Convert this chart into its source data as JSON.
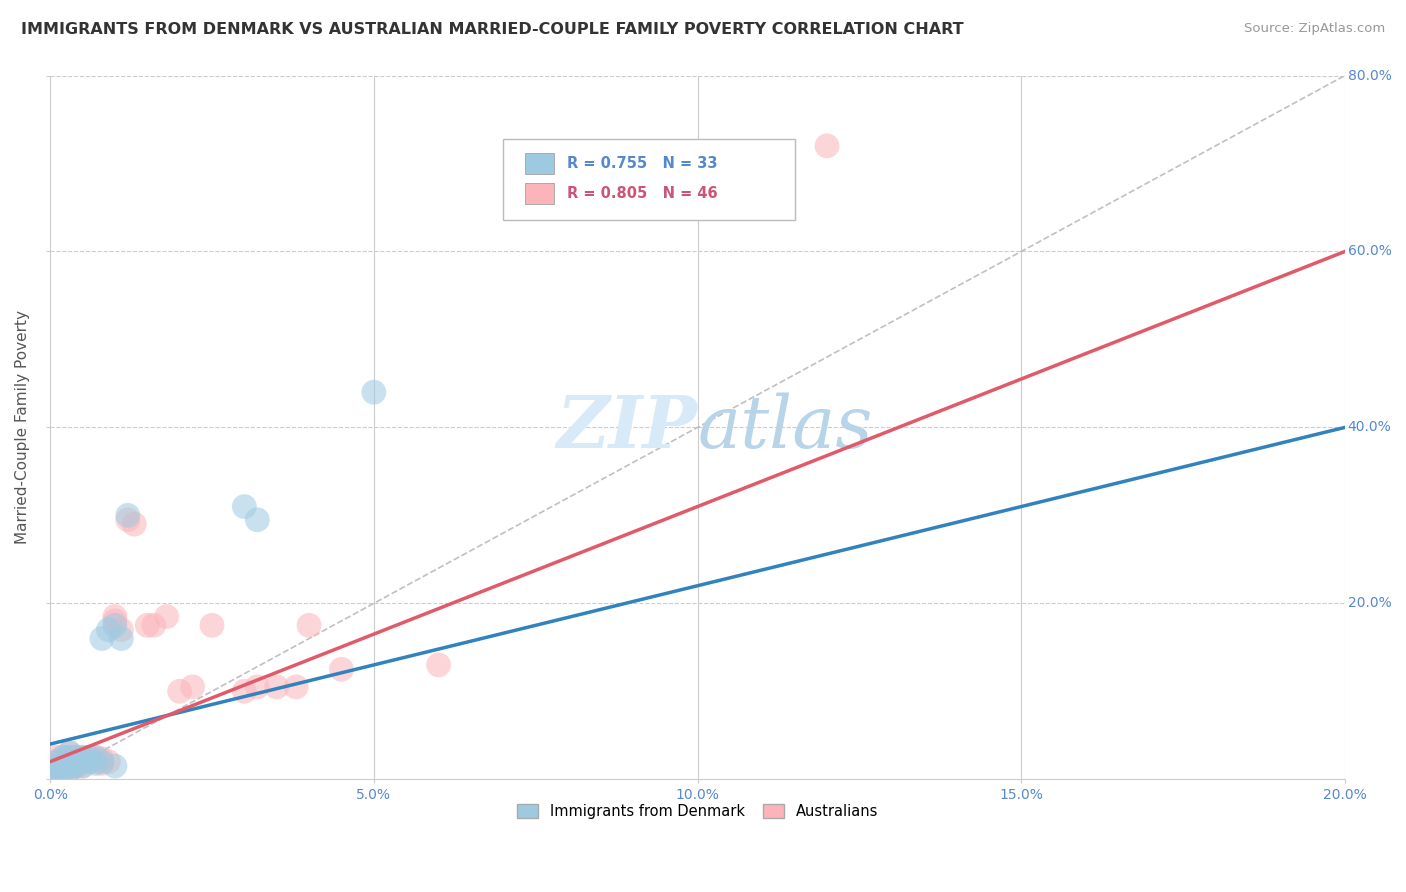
{
  "title": "IMMIGRANTS FROM DENMARK VS AUSTRALIAN MARRIED-COUPLE FAMILY POVERTY CORRELATION CHART",
  "source": "Source: ZipAtlas.com",
  "ylabel": "Married-Couple Family Poverty",
  "xlim": [
    0.0,
    0.2
  ],
  "ylim": [
    0.0,
    0.8
  ],
  "legend_r1": "R = 0.755",
  "legend_n1": "N = 33",
  "legend_r2": "R = 0.805",
  "legend_n2": "N = 46",
  "color_blue": "#9ecae1",
  "color_pink": "#fbb4b9",
  "color_blue_line": "#3182bd",
  "color_pink_line": "#e05a6a",
  "color_diag": "#c0c0c0",
  "watermark_color": "#d8eaf8",
  "background": "#ffffff",
  "blue_line_x0": 0.0,
  "blue_line_y0": 0.04,
  "blue_line_x1": 0.2,
  "blue_line_y1": 0.4,
  "pink_line_x0": 0.0,
  "pink_line_y0": 0.02,
  "pink_line_x1": 0.2,
  "pink_line_y1": 0.6,
  "denmark_x": [
    0.0005,
    0.001,
    0.001,
    0.001,
    0.002,
    0.002,
    0.002,
    0.002,
    0.003,
    0.003,
    0.003,
    0.003,
    0.003,
    0.004,
    0.004,
    0.004,
    0.005,
    0.005,
    0.005,
    0.006,
    0.006,
    0.007,
    0.007,
    0.008,
    0.008,
    0.009,
    0.01,
    0.01,
    0.011,
    0.012,
    0.03,
    0.032,
    0.05
  ],
  "denmark_y": [
    0.005,
    0.01,
    0.015,
    0.02,
    0.01,
    0.015,
    0.02,
    0.025,
    0.01,
    0.015,
    0.02,
    0.025,
    0.03,
    0.015,
    0.02,
    0.025,
    0.015,
    0.02,
    0.025,
    0.02,
    0.025,
    0.018,
    0.025,
    0.02,
    0.16,
    0.17,
    0.015,
    0.175,
    0.16,
    0.3,
    0.31,
    0.295,
    0.44
  ],
  "australia_x": [
    0.0005,
    0.001,
    0.001,
    0.001,
    0.001,
    0.002,
    0.002,
    0.002,
    0.002,
    0.003,
    0.003,
    0.003,
    0.003,
    0.003,
    0.004,
    0.004,
    0.004,
    0.005,
    0.005,
    0.005,
    0.006,
    0.006,
    0.007,
    0.007,
    0.008,
    0.008,
    0.009,
    0.01,
    0.01,
    0.011,
    0.012,
    0.013,
    0.015,
    0.016,
    0.018,
    0.02,
    0.022,
    0.025,
    0.03,
    0.032,
    0.035,
    0.038,
    0.04,
    0.045,
    0.06,
    0.12
  ],
  "australia_y": [
    0.008,
    0.01,
    0.015,
    0.02,
    0.025,
    0.01,
    0.015,
    0.02,
    0.025,
    0.01,
    0.015,
    0.02,
    0.025,
    0.03,
    0.015,
    0.02,
    0.025,
    0.015,
    0.02,
    0.025,
    0.02,
    0.025,
    0.02,
    0.025,
    0.018,
    0.023,
    0.02,
    0.18,
    0.185,
    0.17,
    0.295,
    0.29,
    0.175,
    0.175,
    0.185,
    0.1,
    0.105,
    0.175,
    0.1,
    0.105,
    0.105,
    0.105,
    0.175,
    0.125,
    0.13,
    0.72
  ]
}
